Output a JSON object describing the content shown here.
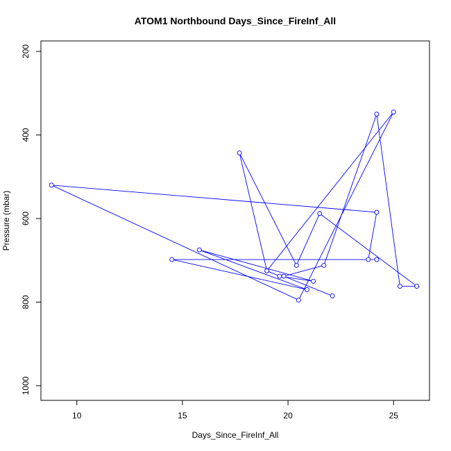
{
  "chart_data": {
    "type": "line",
    "title": "ATOM1 Northbound Days_Since_FireInf_All",
    "xlabel": "Days_Since_FireInf_All",
    "ylabel": "Pressure (mbar)",
    "xlim": [
      8.3,
      26.7
    ],
    "ylim": [
      1035,
      175
    ],
    "y_axis_inverted": true,
    "xticks": [
      10,
      15,
      20,
      25
    ],
    "yticks": [
      200,
      400,
      600,
      800,
      1000
    ],
    "grid": false,
    "markers": "open-circle",
    "color": "#0000ff",
    "series": [
      {
        "x": [
          19.0,
          19.6,
          21.2,
          15.8,
          20.9,
          14.5,
          24.2,
          23.8,
          24.2,
          8.8,
          20.5,
          25.0,
          19.0,
          17.7,
          20.4,
          21.5,
          26.1,
          25.3,
          24.2,
          21.7,
          19.8,
          22.1
        ],
        "y": [
          725,
          738,
          750,
          675,
          770,
          698,
          698,
          698,
          585,
          520,
          795,
          345,
          725,
          443,
          712,
          588,
          762,
          762,
          350,
          712,
          738,
          785
        ]
      }
    ]
  },
  "ui": {
    "accent": "#0000ff",
    "frame": "#000000",
    "background": "#ffffff"
  }
}
